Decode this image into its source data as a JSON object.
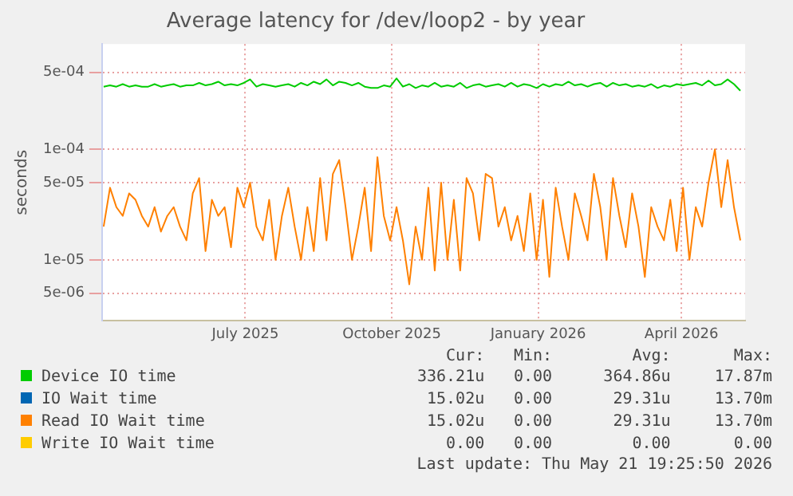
{
  "chart_data": {
    "type": "line",
    "title": "Average latency for /dev/loop2 - by year",
    "ylabel": "seconds",
    "log": "y",
    "grid": true,
    "legend": "bottom",
    "marker": "none",
    "line_style": "solid",
    "xlim": [
      "2025-04-02",
      "2026-05-11"
    ],
    "xticks": [
      {
        "value": "2025-07-01",
        "label": "July 2025"
      },
      {
        "value": "2025-10-01",
        "label": "October 2025"
      },
      {
        "value": "2026-01-01",
        "label": "January 2026"
      },
      {
        "value": "2026-04-01",
        "label": "April 2026"
      }
    ],
    "ylim": [
      2.8e-06,
      0.0009
    ],
    "yticks": [
      {
        "value": 5e-06,
        "label": "5e-06"
      },
      {
        "value": 1e-05,
        "label": "1e-05"
      },
      {
        "value": 5e-05,
        "label": "5e-05"
      },
      {
        "value": 0.0001,
        "label": "1e-04"
      },
      {
        "value": 0.0005,
        "label": "5e-04"
      }
    ],
    "x": [
      "2025-04-03",
      "2025-04-07",
      "2025-04-11",
      "2025-04-15",
      "2025-04-19",
      "2025-04-23",
      "2025-04-27",
      "2025-05-01",
      "2025-05-05",
      "2025-05-09",
      "2025-05-13",
      "2025-05-17",
      "2025-05-21",
      "2025-05-25",
      "2025-05-29",
      "2025-06-02",
      "2025-06-06",
      "2025-06-10",
      "2025-06-14",
      "2025-06-18",
      "2025-06-22",
      "2025-06-26",
      "2025-06-30",
      "2025-07-04",
      "2025-07-08",
      "2025-07-12",
      "2025-07-16",
      "2025-07-20",
      "2025-07-24",
      "2025-07-28",
      "2025-08-01",
      "2025-08-05",
      "2025-08-09",
      "2025-08-13",
      "2025-08-17",
      "2025-08-21",
      "2025-08-25",
      "2025-08-29",
      "2025-09-02",
      "2025-09-06",
      "2025-09-10",
      "2025-09-14",
      "2025-09-18",
      "2025-09-22",
      "2025-09-26",
      "2025-09-30",
      "2025-10-04",
      "2025-10-08",
      "2025-10-12",
      "2025-10-16",
      "2025-10-20",
      "2025-10-24",
      "2025-10-28",
      "2025-11-01",
      "2025-11-05",
      "2025-11-09",
      "2025-11-13",
      "2025-11-17",
      "2025-11-21",
      "2025-11-25",
      "2025-11-29",
      "2025-12-03",
      "2025-12-07",
      "2025-12-11",
      "2025-12-15",
      "2025-12-19",
      "2025-12-23",
      "2025-12-27",
      "2025-12-31",
      "2026-01-04",
      "2026-01-08",
      "2026-01-12",
      "2026-01-16",
      "2026-01-20",
      "2026-01-24",
      "2026-01-28",
      "2026-02-01",
      "2026-02-05",
      "2026-02-09",
      "2026-02-13",
      "2026-02-17",
      "2026-02-21",
      "2026-02-25",
      "2026-03-01",
      "2026-03-05",
      "2026-03-09",
      "2026-03-13",
      "2026-03-17",
      "2026-03-21",
      "2026-03-25",
      "2026-03-29",
      "2026-04-02",
      "2026-04-06",
      "2026-04-10",
      "2026-04-14",
      "2026-04-18",
      "2026-04-22",
      "2026-04-26",
      "2026-04-30",
      "2026-05-04",
      "2026-05-08"
    ],
    "series": [
      {
        "name": "Device IO time",
        "color": "#00cc00",
        "values": [
          0.00037,
          0.00038,
          0.00037,
          0.00039,
          0.00037,
          0.00038,
          0.00037,
          0.00037,
          0.00039,
          0.00037,
          0.00038,
          0.00039,
          0.00037,
          0.00038,
          0.00038,
          0.0004,
          0.00038,
          0.00039,
          0.00041,
          0.00038,
          0.00039,
          0.00038,
          0.0004,
          0.00043,
          0.00037,
          0.00039,
          0.00038,
          0.00037,
          0.00038,
          0.00039,
          0.00037,
          0.0004,
          0.00038,
          0.00041,
          0.00039,
          0.00043,
          0.00038,
          0.00041,
          0.0004,
          0.00038,
          0.0004,
          0.00037,
          0.00036,
          0.00036,
          0.00038,
          0.00037,
          0.00044,
          0.00037,
          0.00039,
          0.00036,
          0.00038,
          0.00037,
          0.0004,
          0.00037,
          0.00038,
          0.00037,
          0.0004,
          0.00036,
          0.00038,
          0.00039,
          0.00037,
          0.00038,
          0.00039,
          0.00037,
          0.0004,
          0.00037,
          0.00039,
          0.00038,
          0.00036,
          0.00039,
          0.00037,
          0.00039,
          0.00038,
          0.00041,
          0.00038,
          0.00039,
          0.00037,
          0.00039,
          0.0004,
          0.00037,
          0.0004,
          0.00038,
          0.00039,
          0.00037,
          0.00038,
          0.00037,
          0.00039,
          0.00036,
          0.00038,
          0.00037,
          0.00039,
          0.00038,
          0.00039,
          0.0004,
          0.00038,
          0.00042,
          0.00038,
          0.00039,
          0.00043,
          0.00039,
          0.00034
        ]
      },
      {
        "name": "IO Wait time",
        "color": "#0066b3",
        "values": [
          null,
          null,
          null,
          null,
          null,
          null,
          null,
          null,
          null,
          null,
          null,
          null,
          null,
          null,
          null,
          null,
          null,
          null,
          null,
          null,
          null,
          null,
          null,
          null,
          null,
          null,
          null,
          null,
          null,
          null,
          null,
          null,
          null,
          null,
          null,
          null,
          null,
          null,
          null,
          null,
          null,
          null,
          null,
          null,
          null,
          null,
          null,
          null,
          null,
          null,
          null,
          null,
          null,
          null,
          null,
          null,
          null,
          null,
          null,
          null,
          null,
          null,
          null,
          null,
          null,
          null,
          null,
          null,
          null,
          null,
          null,
          null,
          null,
          null,
          null,
          null,
          null,
          null,
          null,
          null,
          null,
          null,
          null,
          null,
          null,
          null,
          null,
          null,
          null,
          null,
          null,
          null,
          null,
          null,
          null,
          null,
          null,
          null,
          null,
          null,
          null
        ]
      },
      {
        "name": "Read IO Wait time",
        "color": "#ff8000",
        "values": [
          2e-05,
          4.5e-05,
          3e-05,
          2.5e-05,
          4e-05,
          3.5e-05,
          2.5e-05,
          2e-05,
          3e-05,
          1.8e-05,
          2.5e-05,
          3e-05,
          2e-05,
          1.5e-05,
          4e-05,
          5.5e-05,
          1.2e-05,
          3.5e-05,
          2.5e-05,
          3e-05,
          1.3e-05,
          4.5e-05,
          3e-05,
          5e-05,
          2e-05,
          1.5e-05,
          3.5e-05,
          1e-05,
          2.5e-05,
          4.5e-05,
          2e-05,
          1e-05,
          3e-05,
          1.2e-05,
          5.5e-05,
          1.5e-05,
          6e-05,
          8e-05,
          3e-05,
          1e-05,
          2e-05,
          4.5e-05,
          1.2e-05,
          8.5e-05,
          2.5e-05,
          1.5e-05,
          3e-05,
          1.5e-05,
          6e-06,
          2e-05,
          1e-05,
          4.5e-05,
          8e-06,
          5e-05,
          1e-05,
          3.5e-05,
          8e-06,
          5.5e-05,
          4e-05,
          1.5e-05,
          6e-05,
          5.5e-05,
          2e-05,
          3e-05,
          1.5e-05,
          2.5e-05,
          1.2e-05,
          4e-05,
          1e-05,
          3.5e-05,
          7e-06,
          4.5e-05,
          2e-05,
          1e-05,
          4e-05,
          2.5e-05,
          1.5e-05,
          6e-05,
          3e-05,
          1e-05,
          5.5e-05,
          2.5e-05,
          1.3e-05,
          4e-05,
          2e-05,
          7e-06,
          3e-05,
          2e-05,
          1.5e-05,
          3.5e-05,
          1.2e-05,
          4.5e-05,
          1e-05,
          3e-05,
          2e-05,
          5e-05,
          0.0001,
          3e-05,
          8e-05,
          3e-05,
          1.5e-05
        ]
      },
      {
        "name": "Write IO Wait time",
        "color": "#ffcc00",
        "values": [
          null,
          null,
          null,
          null,
          null,
          null,
          null,
          null,
          null,
          null,
          null,
          null,
          null,
          null,
          null,
          null,
          null,
          null,
          null,
          null,
          null,
          null,
          null,
          null,
          null,
          null,
          null,
          null,
          null,
          null,
          null,
          null,
          null,
          null,
          null,
          null,
          null,
          null,
          null,
          null,
          null,
          null,
          null,
          null,
          null,
          null,
          null,
          null,
          null,
          null,
          null,
          null,
          null,
          null,
          null,
          null,
          null,
          null,
          null,
          null,
          null,
          null,
          null,
          null,
          null,
          null,
          null,
          null,
          null,
          null,
          null,
          null,
          null,
          null,
          null,
          null,
          null,
          null,
          null,
          null,
          null,
          null,
          null,
          null,
          null,
          null,
          null,
          null,
          null,
          null,
          null,
          null,
          null,
          null,
          null,
          null,
          null,
          null,
          null,
          null,
          null
        ]
      }
    ],
    "annotations": [
      "Cur:",
      "Min:",
      "Avg:",
      "Max:",
      "336.21u",
      "0.00",
      "364.86u",
      "17.87m",
      "15.02u",
      "0.00",
      "29.31u",
      "13.70m",
      "15.02u",
      "0.00",
      "29.31u",
      "13.70m",
      "0.00",
      "0.00",
      "0.00",
      "0.00",
      "Last update: Thu May 21 19:25:50 2026"
    ]
  }
}
